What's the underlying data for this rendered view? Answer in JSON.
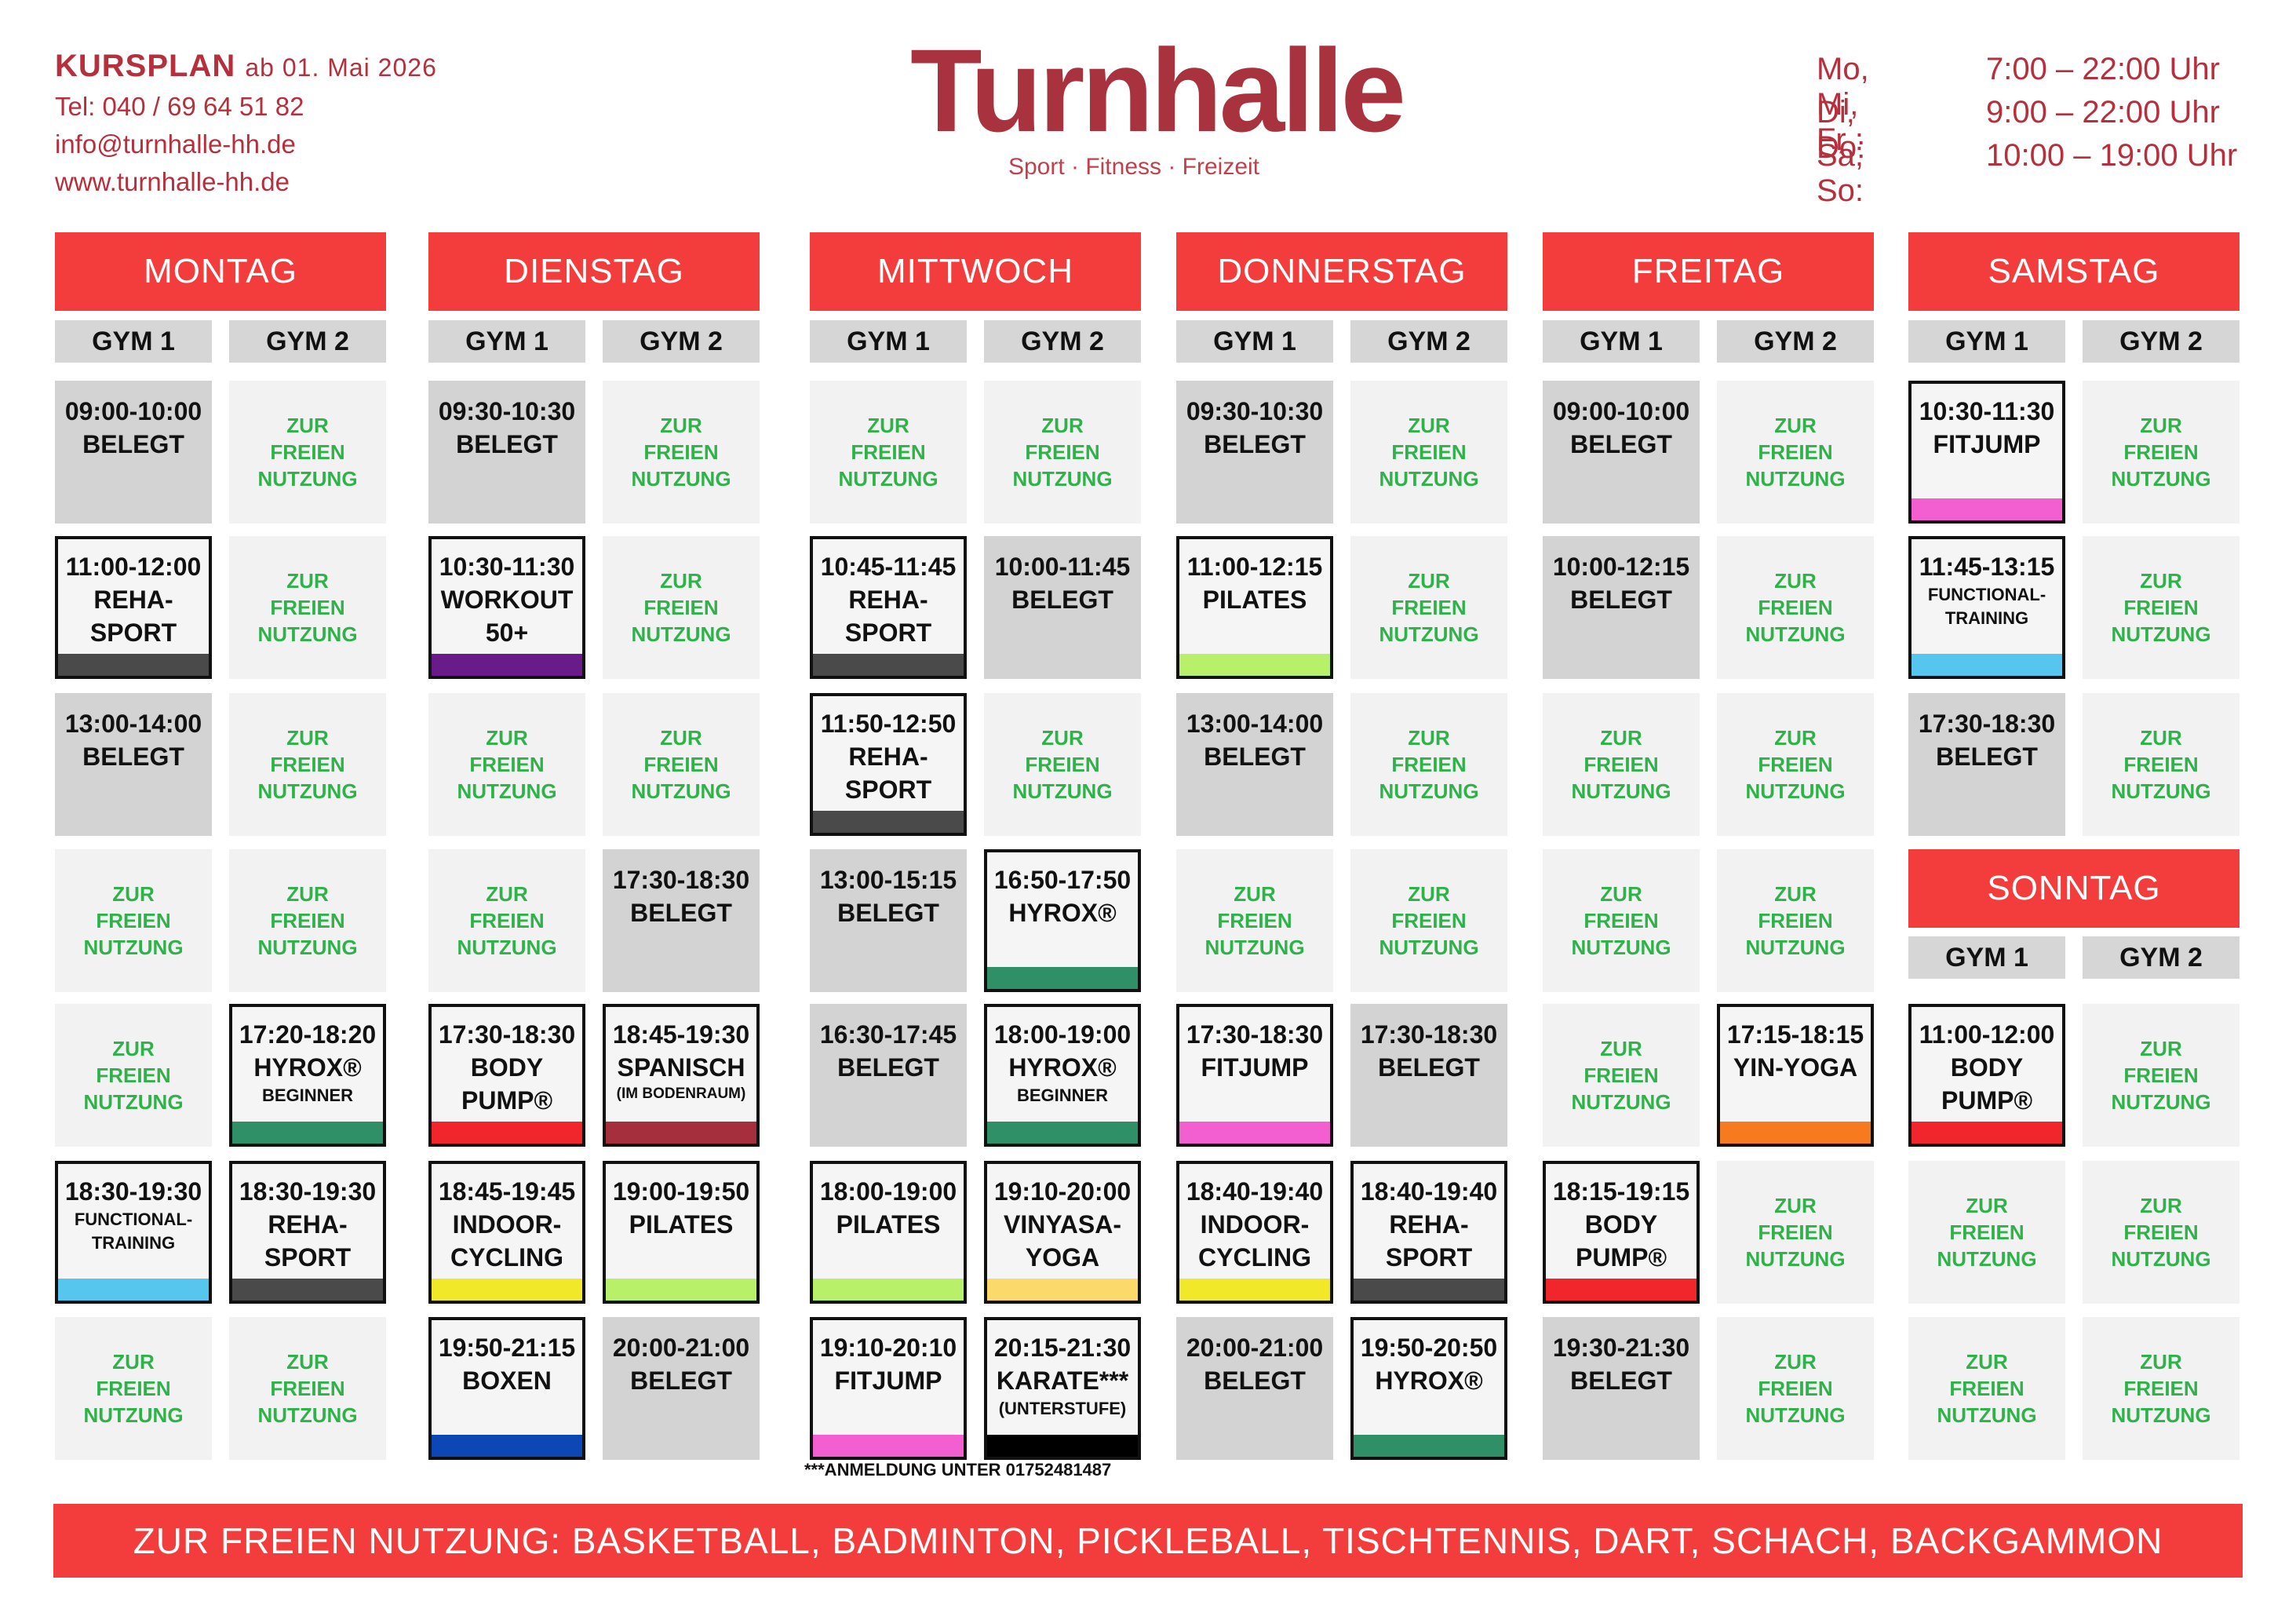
{
  "header": {
    "kursplan": "KURSPLAN",
    "valid_from": "ab 01. Mai 2026",
    "phone": "Tel: 040 / 69 64 51 82",
    "email": "info@turnhalle-hh.de",
    "web": "www.turnhalle-hh.de",
    "logo_word": "Turnhalle",
    "tagline": "Sport · Fitness · Freizeit",
    "opening_hours": [
      {
        "days": "Mo, Mi, Fr :",
        "time": "7:00 – 22:00 Uhr"
      },
      {
        "days": "Di, Do:",
        "time": "9:00 – 22:00 Uhr"
      },
      {
        "days": "Sa, So:",
        "time": "10:00 – 19:00 Uhr"
      }
    ]
  },
  "gym1": "GYM 1",
  "gym2": "GYM 2",
  "free_text": "ZUR\nFREIEN\nNUTZUNG",
  "colors": {
    "header_red": "#f33d3d",
    "brand_red": "#a8333f",
    "free_green": "#2fb24a",
    "busy_grey": "#d3d3d3",
    "free_grey": "#f2f2f2"
  },
  "days": [
    {
      "name": "MONTAG",
      "gym1": [
        {
          "type": "busy",
          "lines": [
            "09:00-10:00",
            "BELEGT"
          ]
        },
        {
          "type": "course",
          "lines": [
            "11:00-12:00",
            "REHA-",
            "SPORT"
          ],
          "color": "#4a4a4a"
        },
        {
          "type": "busy",
          "lines": [
            "13:00-14:00",
            "BELEGT"
          ]
        },
        {
          "type": "free"
        },
        {
          "type": "free"
        },
        {
          "type": "course",
          "lines": [
            "18:30-19:30"
          ],
          "sub": [
            "FUNCTIONAL-",
            "TRAINING"
          ],
          "color": "#56c6ef"
        },
        {
          "type": "free"
        }
      ],
      "gym2": [
        {
          "type": "free"
        },
        {
          "type": "free"
        },
        {
          "type": "free"
        },
        {
          "type": "free"
        },
        {
          "type": "course",
          "lines": [
            "17:20-18:20",
            "HYROX®"
          ],
          "sub": [
            "BEGINNER"
          ],
          "color": "#2f8f66"
        },
        {
          "type": "course",
          "lines": [
            "18:30-19:30",
            "REHA-",
            "SPORT"
          ],
          "color": "#4a4a4a"
        },
        {
          "type": "free"
        }
      ]
    },
    {
      "name": "DIENSTAG",
      "gym1": [
        {
          "type": "busy",
          "lines": [
            "09:30-10:30",
            "BELEGT"
          ]
        },
        {
          "type": "course",
          "lines": [
            "10:30-11:30",
            "WORKOUT",
            "50+"
          ],
          "color": "#6a1b8a"
        },
        {
          "type": "free"
        },
        {
          "type": "free"
        },
        {
          "type": "course",
          "lines": [
            "17:30-18:30",
            "BODY",
            "PUMP®"
          ],
          "color": "#f0262c"
        },
        {
          "type": "course",
          "lines": [
            "18:45-19:45",
            "INDOOR-",
            "CYCLING"
          ],
          "color": "#f1e82a"
        },
        {
          "type": "course",
          "lines": [
            "19:50-21:15",
            "BOXEN"
          ],
          "color": "#0d47b5"
        }
      ],
      "gym2": [
        {
          "type": "free"
        },
        {
          "type": "free"
        },
        {
          "type": "free"
        },
        {
          "type": "busy",
          "lines": [
            "17:30-18:30",
            "BELEGT"
          ]
        },
        {
          "type": "course",
          "lines": [
            "18:45-19:30",
            "SPANISCH"
          ],
          "tiny": [
            "(IM BODENRAUM)"
          ],
          "color": "#a62f3d"
        },
        {
          "type": "course",
          "lines": [
            "19:00-19:50",
            "PILATES"
          ],
          "color": "#b8f06a"
        },
        {
          "type": "busy",
          "lines": [
            "20:00-21:00",
            "BELEGT"
          ]
        }
      ]
    },
    {
      "name": "MITTWOCH",
      "gym1": [
        {
          "type": "free"
        },
        {
          "type": "course",
          "lines": [
            "10:45-11:45",
            "REHA-",
            "SPORT"
          ],
          "color": "#4a4a4a"
        },
        {
          "type": "course",
          "lines": [
            "11:50-12:50",
            "REHA-",
            "SPORT"
          ],
          "color": "#4a4a4a"
        },
        {
          "type": "busy",
          "lines": [
            "13:00-15:15",
            "BELEGT"
          ]
        },
        {
          "type": "busy",
          "lines": [
            "16:30-17:45",
            "BELEGT"
          ]
        },
        {
          "type": "course",
          "lines": [
            "18:00-19:00",
            "PILATES"
          ],
          "color": "#b8f06a"
        },
        {
          "type": "course",
          "lines": [
            "19:10-20:10",
            "FITJUMP"
          ],
          "color": "#f35ed0"
        }
      ],
      "gym2": [
        {
          "type": "free"
        },
        {
          "type": "busy",
          "lines": [
            "10:00-11:45",
            "BELEGT"
          ]
        },
        {
          "type": "free"
        },
        {
          "type": "course",
          "lines": [
            "16:50-17:50",
            "HYROX®"
          ],
          "color": "#2f8f66"
        },
        {
          "type": "course",
          "lines": [
            "18:00-19:00",
            "HYROX®"
          ],
          "sub": [
            "BEGINNER"
          ],
          "color": "#2f8f66"
        },
        {
          "type": "course",
          "lines": [
            "19:10-20:00",
            "VINYASA-",
            "YOGA"
          ],
          "color": "#fbd96a"
        },
        {
          "type": "course",
          "lines": [
            "20:15-21:30",
            "KARATE***"
          ],
          "sub": [
            "(UNTERSTUFE)"
          ],
          "color": "#000000"
        }
      ]
    },
    {
      "name": "DONNERSTAG",
      "gym1": [
        {
          "type": "busy",
          "lines": [
            "09:30-10:30",
            "BELEGT"
          ]
        },
        {
          "type": "course",
          "lines": [
            "11:00-12:15",
            "PILATES"
          ],
          "color": "#b8f06a"
        },
        {
          "type": "busy",
          "lines": [
            "13:00-14:00",
            "BELEGT"
          ]
        },
        {
          "type": "free"
        },
        {
          "type": "course",
          "lines": [
            "17:30-18:30",
            "FITJUMP"
          ],
          "color": "#f35ed0"
        },
        {
          "type": "course",
          "lines": [
            "18:40-19:40",
            "INDOOR-",
            "CYCLING"
          ],
          "color": "#f1e82a"
        },
        {
          "type": "busy",
          "lines": [
            "20:00-21:00",
            "BELEGT"
          ]
        }
      ],
      "gym2": [
        {
          "type": "free"
        },
        {
          "type": "free"
        },
        {
          "type": "free"
        },
        {
          "type": "free"
        },
        {
          "type": "busy",
          "lines": [
            "17:30-18:30",
            "BELEGT"
          ]
        },
        {
          "type": "course",
          "lines": [
            "18:40-19:40",
            "REHA-",
            "SPORT"
          ],
          "color": "#4a4a4a"
        },
        {
          "type": "course",
          "lines": [
            "19:50-20:50",
            "HYROX®"
          ],
          "color": "#2f8f66"
        }
      ]
    },
    {
      "name": "FREITAG",
      "gym1": [
        {
          "type": "busy",
          "lines": [
            "09:00-10:00",
            "BELEGT"
          ]
        },
        {
          "type": "busy",
          "lines": [
            "10:00-12:15",
            "BELEGT"
          ]
        },
        {
          "type": "free"
        },
        {
          "type": "free"
        },
        {
          "type": "free"
        },
        {
          "type": "course",
          "lines": [
            "18:15-19:15",
            "BODY",
            "PUMP®"
          ],
          "color": "#f0262c"
        },
        {
          "type": "busy",
          "lines": [
            "19:30-21:30",
            "BELEGT"
          ]
        }
      ],
      "gym2": [
        {
          "type": "free"
        },
        {
          "type": "free"
        },
        {
          "type": "free"
        },
        {
          "type": "free"
        },
        {
          "type": "course",
          "lines": [
            "17:15-18:15",
            "YIN-YOGA"
          ],
          "color": "#f77a1e"
        },
        {
          "type": "free"
        },
        {
          "type": "free"
        }
      ]
    }
  ],
  "saturday": {
    "name": "SAMSTAG",
    "gym1": [
      {
        "type": "course",
        "lines": [
          "10:30-11:30",
          "FITJUMP"
        ],
        "color": "#f35ed0"
      },
      {
        "type": "course",
        "lines": [
          "11:45-13:15"
        ],
        "sub": [
          "FUNCTIONAL-",
          "TRAINING"
        ],
        "color": "#56c6ef"
      },
      {
        "type": "busy",
        "lines": [
          "17:30-18:30",
          "BELEGT"
        ]
      }
    ],
    "gym2": [
      {
        "type": "free"
      },
      {
        "type": "free"
      },
      {
        "type": "free"
      }
    ]
  },
  "sunday": {
    "name": "SONNTAG",
    "gym1": [
      {
        "type": "course",
        "lines": [
          "11:00-12:00",
          "BODY",
          "PUMP®"
        ],
        "color": "#f0262c"
      },
      {
        "type": "free"
      },
      {
        "type": "free"
      }
    ],
    "gym2": [
      {
        "type": "free"
      },
      {
        "type": "free"
      },
      {
        "type": "free"
      }
    ]
  },
  "note": "***ANMELDUNG UNTER 01752481487",
  "footer": "ZUR FREIEN NUTZUNG: BASKETBALL, BADMINTON, PICKLEBALL, TISCHTENNIS, DART, SCHACH, BACKGAMMON"
}
